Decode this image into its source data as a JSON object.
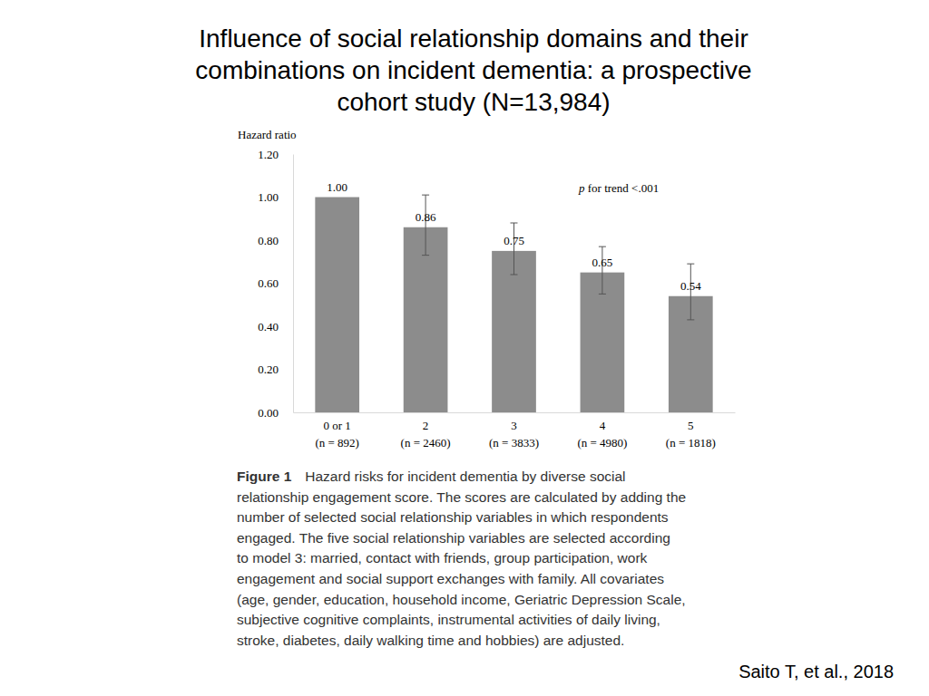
{
  "chart_data": {
    "type": "bar",
    "title": [
      "Influence of social relationship domains and their",
      "combinations on incident dementia: a prospective",
      "cohort study (N=13,984)"
    ],
    "y_label": "Hazard ratio",
    "categories": [
      "0 or 1",
      "2",
      "3",
      "4",
      "5"
    ],
    "sublabels": [
      "(n = 892)",
      "(n = 2460)",
      "(n = 3833)",
      "(n = 4980)",
      "(n = 1818)"
    ],
    "values": [
      1.0,
      0.86,
      0.75,
      0.65,
      0.54
    ],
    "value_labels": [
      "1.00",
      "0.86",
      "0.75",
      "0.65",
      "0.54"
    ],
    "ci_low": [
      null,
      0.73,
      0.64,
      0.55,
      0.43
    ],
    "ci_high": [
      null,
      1.01,
      0.88,
      0.77,
      0.69
    ],
    "color": "#8c8c8c",
    "ylim": [
      0,
      1.2
    ],
    "yticks": [
      {
        "value": 0,
        "label": "0.00"
      },
      {
        "value": 0.2,
        "label": "0.20"
      },
      {
        "value": 0.4,
        "label": "0.40"
      },
      {
        "value": 0.6,
        "label": "0.60"
      },
      {
        "value": 0.8,
        "label": "0.80"
      },
      {
        "value": 1.0,
        "label": "1.00"
      },
      {
        "value": 1.2,
        "label": "1.20"
      }
    ],
    "grid": false,
    "data_labels": true,
    "annotation": "p for trend <.001",
    "figure_label": "Figure 1",
    "caption": [
      "Hazard risks for incident dementia by diverse social",
      "relationship engagement score. The scores are calculated by adding the",
      "number of selected social relationship variables in which respondents",
      "engaged. The five social relationship variables are selected according",
      "to model 3: married, contact with friends, group participation, work",
      "engagement and social support exchanges with family. All covariates",
      "(age, gender, education, household income, Geriatric Depression Scale,",
      "subjective cognitive complaints, instrumental activities of daily living,",
      "stroke, diabetes, daily walking time and hobbies) are adjusted."
    ],
    "source": "Saito T, et al., 2018"
  }
}
